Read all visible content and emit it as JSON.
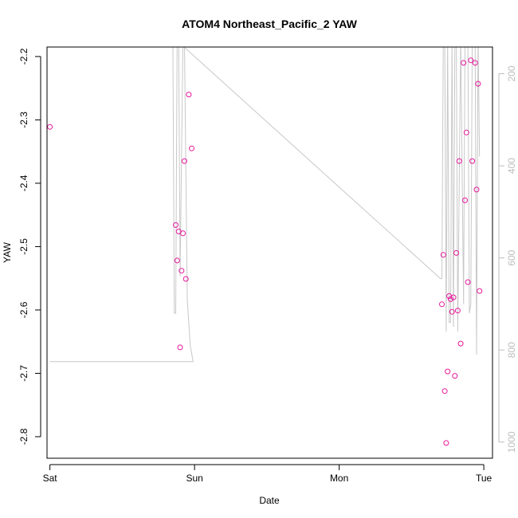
{
  "chart_data": {
    "type": "scatter",
    "title": "ATOM4 Northeast_Pacific_2 YAW",
    "xlabel": "Date",
    "ylabel": "YAW",
    "x_ticks": [
      "Sat",
      "Sun",
      "Mon",
      "Tue"
    ],
    "xlim": [
      -0.02,
      3.06
    ],
    "ylim": [
      -2.834,
      -2.185
    ],
    "y_ticks": [
      -2.2,
      -2.3,
      -2.4,
      -2.5,
      -2.6,
      -2.7,
      -2.8
    ],
    "y2_ticks": [
      200,
      400,
      600,
      800,
      1000
    ],
    "y2lim": [
      1035,
      142
    ],
    "grid": false,
    "series": [
      {
        "type": "scatter",
        "color": "#e6199a",
        "points": [
          [
            0.0,
            -2.311
          ],
          [
            0.87,
            -2.466
          ],
          [
            0.88,
            -2.522
          ],
          [
            0.89,
            -2.476
          ],
          [
            0.9,
            -2.659
          ],
          [
            0.91,
            -2.538
          ],
          [
            0.92,
            -2.479
          ],
          [
            0.93,
            -2.365
          ],
          [
            0.94,
            -2.551
          ],
          [
            0.96,
            -2.26
          ],
          [
            0.98,
            -2.345
          ],
          [
            2.71,
            -2.591
          ],
          [
            2.72,
            -2.513
          ],
          [
            2.73,
            -2.728
          ],
          [
            2.74,
            -2.81
          ],
          [
            2.75,
            -2.697
          ],
          [
            2.76,
            -2.578
          ],
          [
            2.77,
            -2.583
          ],
          [
            2.78,
            -2.603
          ],
          [
            2.79,
            -2.58
          ],
          [
            2.8,
            -2.704
          ],
          [
            2.81,
            -2.51
          ],
          [
            2.82,
            -2.601
          ],
          [
            2.83,
            -2.365
          ],
          [
            2.84,
            -2.653
          ],
          [
            2.86,
            -2.21
          ],
          [
            2.87,
            -2.427
          ],
          [
            2.88,
            -2.32
          ],
          [
            2.89,
            -2.556
          ],
          [
            2.91,
            -2.206
          ],
          [
            2.92,
            -2.365
          ],
          [
            2.94,
            -2.21
          ],
          [
            2.95,
            -2.41
          ],
          [
            2.96,
            -2.243
          ],
          [
            2.97,
            -2.57
          ]
        ]
      },
      {
        "type": "line",
        "color": "#c8c8c8",
        "axis": "right",
        "points": [
          [
            0.0,
            825
          ],
          [
            0.99,
            825
          ],
          [
            0.97,
            790
          ],
          [
            0.95,
            690
          ],
          [
            0.93,
            120
          ],
          [
            0.92,
            120
          ],
          [
            0.9,
            640
          ],
          [
            0.89,
            120
          ],
          [
            0.88,
            120
          ],
          [
            0.87,
            720
          ],
          [
            0.86,
            720
          ],
          [
            0.85,
            120
          ],
          [
            2.7,
            645
          ],
          [
            2.71,
            645
          ],
          [
            2.72,
            120
          ],
          [
            2.73,
            120
          ],
          [
            2.74,
            760
          ],
          [
            2.75,
            120
          ],
          [
            2.76,
            740
          ],
          [
            2.77,
            740
          ],
          [
            2.78,
            120
          ],
          [
            2.79,
            750
          ],
          [
            2.8,
            120
          ],
          [
            2.81,
            120
          ],
          [
            2.82,
            760
          ],
          [
            2.84,
            120
          ],
          [
            2.86,
            700
          ],
          [
            2.87,
            120
          ],
          [
            2.89,
            120
          ],
          [
            2.9,
            720
          ],
          [
            2.91,
            700
          ],
          [
            2.92,
            120
          ],
          [
            2.94,
            120
          ],
          [
            2.95,
            810
          ],
          [
            2.96,
            120
          ],
          [
            2.97,
            380
          ]
        ]
      }
    ]
  }
}
